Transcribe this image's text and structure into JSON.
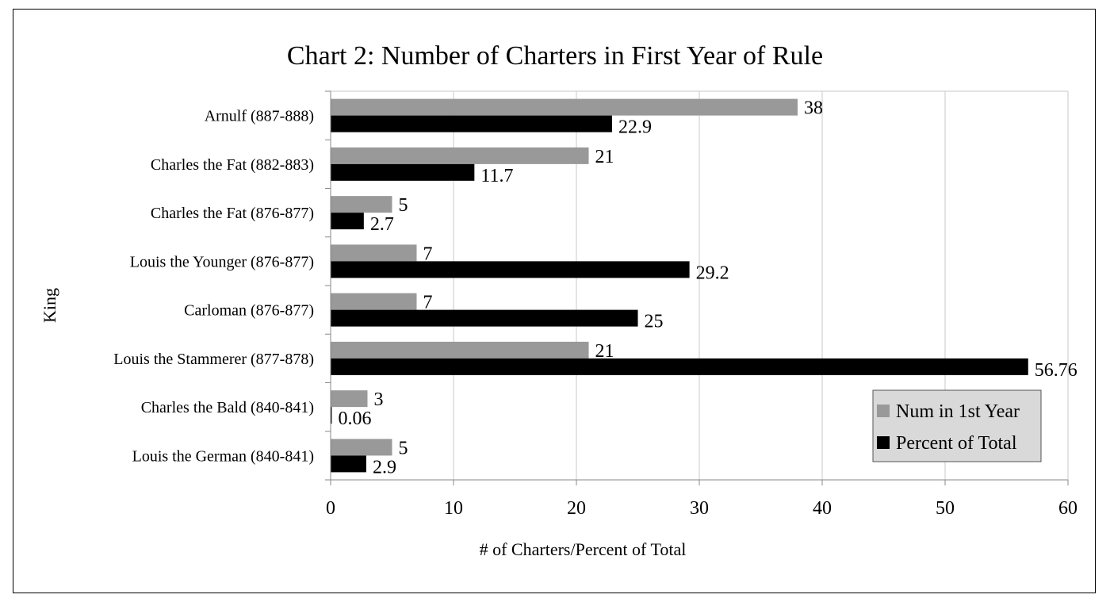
{
  "chart_data": {
    "type": "bar",
    "orientation": "horizontal",
    "title": "Chart 2: Number of Charters in First Year of Rule",
    "xlabel": "# of Charters/Percent of Total",
    "ylabel": "King",
    "xlim": [
      0,
      60
    ],
    "xticks": [
      0,
      10,
      20,
      30,
      40,
      50,
      60
    ],
    "grid": true,
    "legend_position": "bottom-right",
    "categories": [
      "Arnulf (887-888)",
      "Charles the Fat (882-883)",
      "Charles the Fat (876-877)",
      "Louis the Younger (876-877)",
      "Carloman (876-877)",
      "Louis the Stammerer (877-878)",
      "Charles the Bald (840-841)",
      "Louis the German (840-841)"
    ],
    "series": [
      {
        "name": "Num in 1st Year",
        "color": "#999999",
        "values": [
          38,
          21,
          5,
          7,
          7,
          21,
          3,
          5
        ],
        "labels": [
          "38",
          "21",
          "5",
          "7",
          "7",
          "21",
          "3",
          "5"
        ]
      },
      {
        "name": "Percent of Total",
        "color": "#000000",
        "values": [
          22.9,
          11.7,
          2.7,
          29.2,
          25,
          56.76,
          0.06,
          2.9
        ],
        "labels": [
          "22.9",
          "11.7",
          "2.7",
          "29.2",
          "25",
          "56.76",
          "0.06",
          "2.9"
        ]
      }
    ]
  }
}
